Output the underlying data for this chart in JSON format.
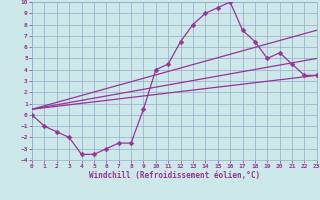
{
  "xlabel": "Windchill (Refroidissement éolien,°C)",
  "xlim": [
    0,
    23
  ],
  "ylim": [
    -4,
    10
  ],
  "xticks": [
    0,
    1,
    2,
    3,
    4,
    5,
    6,
    7,
    8,
    9,
    10,
    11,
    12,
    13,
    14,
    15,
    16,
    17,
    18,
    19,
    20,
    21,
    22,
    23
  ],
  "yticks": [
    -4,
    -3,
    -2,
    -1,
    0,
    1,
    2,
    3,
    4,
    5,
    6,
    7,
    8,
    9,
    10
  ],
  "background_color": "#cce8e8",
  "grid_color": "#99aacc",
  "line_color": "#993399",
  "curve1_x": [
    0,
    1,
    2,
    3,
    4,
    5,
    6,
    7,
    8,
    9,
    10,
    11,
    12,
    13,
    14,
    15,
    16,
    17,
    18,
    19,
    20,
    21,
    22,
    23
  ],
  "curve1_y": [
    0,
    -1,
    -1.5,
    -2,
    -3.5,
    -3.5,
    -3,
    -2.5,
    -2.5,
    0.5,
    4,
    4.5,
    6.5,
    8,
    9,
    9.5,
    10,
    7.5,
    6.5,
    5,
    5.5,
    4.5,
    3.5,
    3.5
  ],
  "line1_x": [
    0,
    23
  ],
  "line1_y": [
    0.5,
    3.5
  ],
  "line2_x": [
    0,
    23
  ],
  "line2_y": [
    0.5,
    5.0
  ],
  "line3_x": [
    0,
    23
  ],
  "line3_y": [
    0.5,
    7.5
  ],
  "marker_size": 2.5,
  "line_width": 0.9
}
